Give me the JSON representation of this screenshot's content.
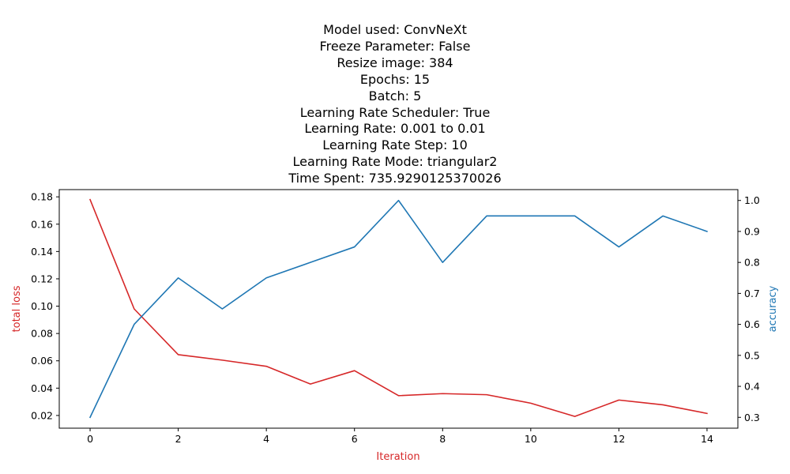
{
  "chart_data": {
    "type": "line",
    "title_lines": [
      "Model used: ConvNeXt",
      "Freeze Parameter: False",
      "Resize image: 384",
      "Epochs: 15",
      "Batch: 5",
      "Learning Rate Scheduler: True",
      "Learning Rate: 0.001 to 0.01",
      "Learning Rate Step: 10",
      "Learning Rate Mode: triangular2",
      "Time Spent: 735.9290125370026"
    ],
    "xlabel": "Iteration",
    "ylabel_left": "total loss",
    "ylabel_right": "accuracy",
    "x": [
      0,
      1,
      2,
      3,
      4,
      5,
      6,
      7,
      8,
      9,
      10,
      11,
      12,
      13,
      14
    ],
    "xlim": [
      -0.7,
      14.7
    ],
    "x_ticks": [
      "0",
      "2",
      "4",
      "6",
      "8",
      "10",
      "12",
      "14"
    ],
    "y_left_lim": [
      0.0107,
      0.1853
    ],
    "y_left_ticks": [
      "0.02",
      "0.04",
      "0.06",
      "0.08",
      "0.10",
      "0.12",
      "0.14",
      "0.16",
      "0.18"
    ],
    "y_right_lim": [
      0.265,
      1.035
    ],
    "y_right_ticks": [
      "0.3",
      "0.4",
      "0.5",
      "0.6",
      "0.7",
      "0.8",
      "0.9",
      "1.0"
    ],
    "grid": false,
    "series": [
      {
        "axis": "left",
        "color": "#d62728",
        "values": [
          0.178,
          0.098,
          0.0645,
          0.0605,
          0.056,
          0.043,
          0.0528,
          0.0345,
          0.036,
          0.0352,
          0.029,
          0.0193,
          0.0313,
          0.0278,
          0.0215
        ]
      },
      {
        "axis": "right",
        "color": "#1f77b4",
        "values": [
          0.3,
          0.6,
          0.75,
          0.65,
          0.75,
          0.8,
          0.85,
          1.0,
          0.8,
          0.95,
          0.95,
          0.95,
          0.85,
          0.95,
          0.9
        ]
      }
    ],
    "colors": {
      "left_axis_label": "#d62728",
      "right_axis_label": "#1f77b4",
      "xlabel": "#d62728"
    }
  }
}
